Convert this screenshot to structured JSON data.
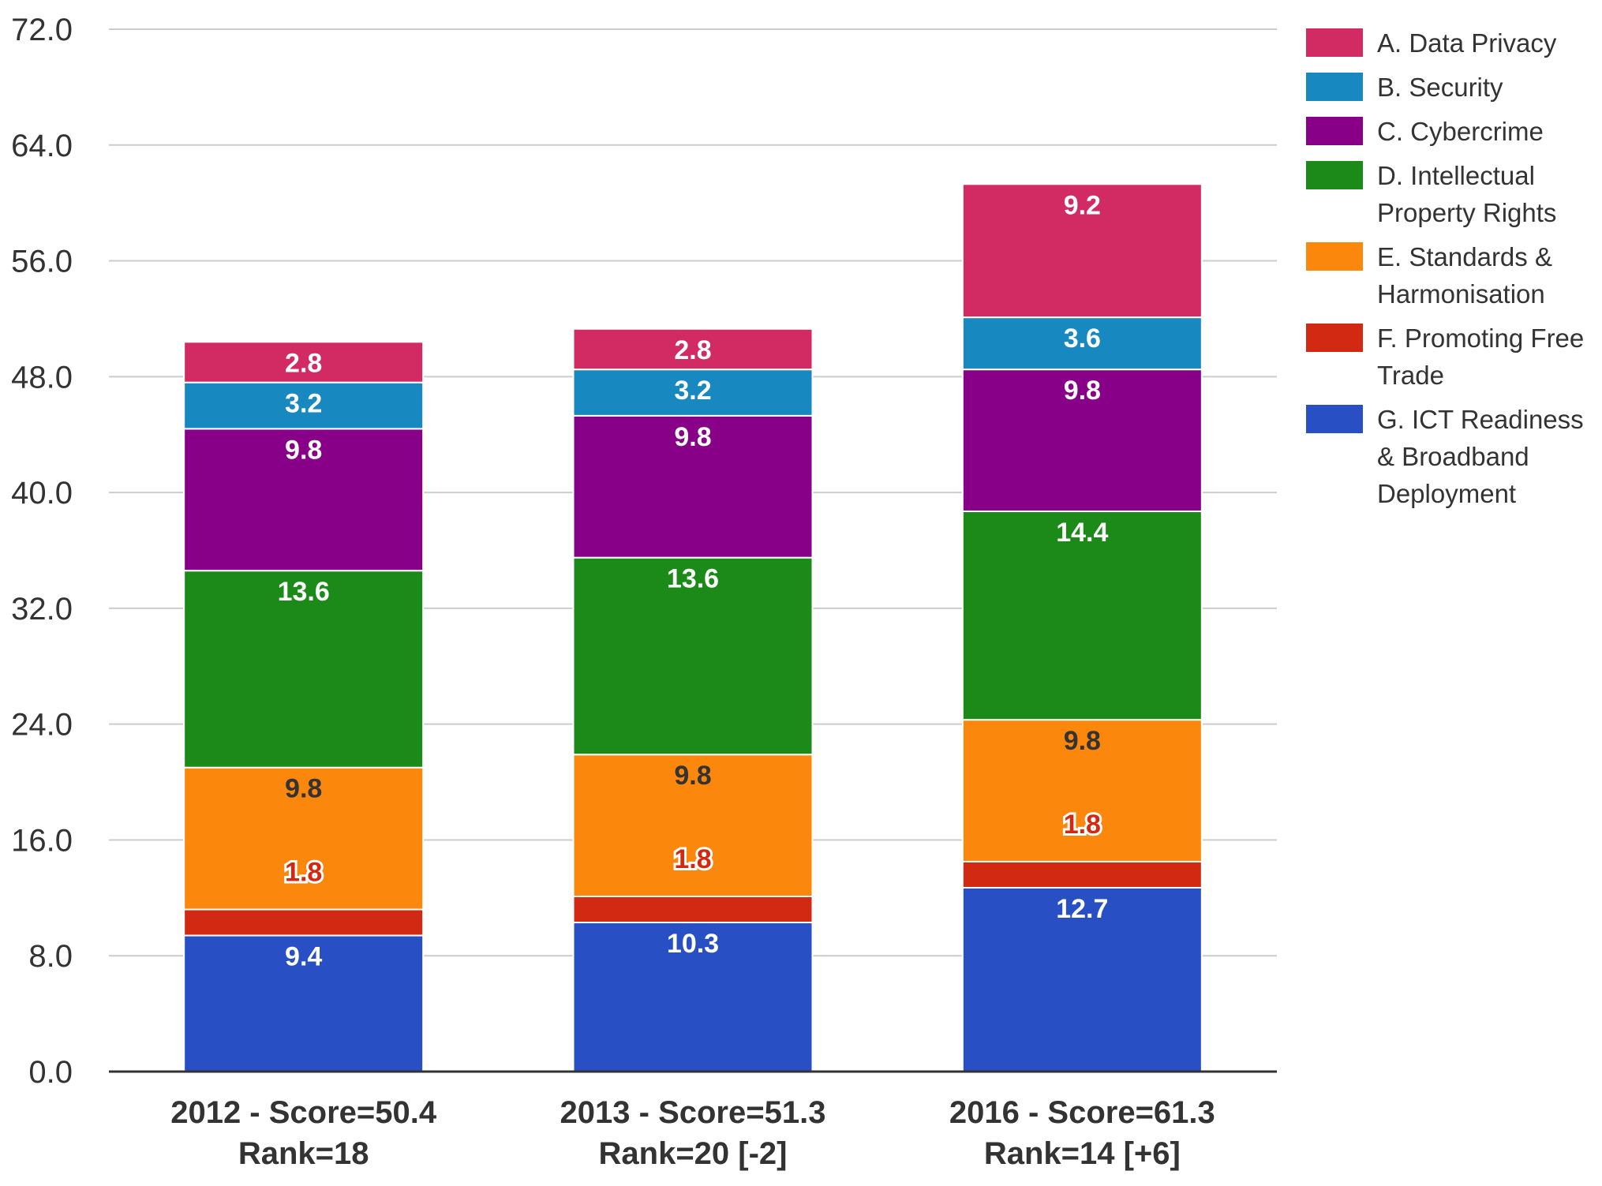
{
  "chart_data": {
    "type": "bar",
    "stacked": true,
    "categories": [
      [
        "2012 - Score=50.4",
        "Rank=18"
      ],
      [
        "2013 - Score=51.3",
        "Rank=20 [-2]"
      ],
      [
        "2016 - Score=61.3",
        "Rank=14 [+6]"
      ]
    ],
    "ylim": [
      0,
      72
    ],
    "yticks": [
      "0.0",
      "8.0",
      "16.0",
      "24.0",
      "32.0",
      "40.0",
      "48.0",
      "56.0",
      "64.0",
      "72.0"
    ],
    "grid": true,
    "legend_position": "right",
    "series": [
      {
        "name": "G. ICT Readiness & Broadband Deployment",
        "color": "#2850c4",
        "label_color": "#ffffff",
        "values": [
          9.4,
          10.3,
          12.7
        ]
      },
      {
        "name": "F. Promoting Free Trade",
        "color": "#d22a12",
        "label_color": "#d22a12",
        "values": [
          1.8,
          1.8,
          1.8
        ]
      },
      {
        "name": "E. Standards & Harmonisation",
        "color": "#fb880c",
        "label_color": "#333333",
        "values": [
          9.8,
          9.8,
          9.8
        ]
      },
      {
        "name": "D. Intellectual Property Rights",
        "color": "#1c8a19",
        "label_color": "#ffffff",
        "values": [
          13.6,
          13.6,
          14.4
        ]
      },
      {
        "name": "C. Cybercrime",
        "color": "#870087",
        "label_color": "#ffffff",
        "values": [
          9.8,
          9.8,
          9.8
        ]
      },
      {
        "name": "B. Security",
        "color": "#1888c0",
        "label_color": "#ffffff",
        "values": [
          3.2,
          3.2,
          3.6
        ]
      },
      {
        "name": "A. Data Privacy",
        "color": "#d22b63",
        "label_color": "#ffffff",
        "values": [
          2.8,
          2.8,
          9.2
        ]
      }
    ],
    "legend": [
      {
        "lines": [
          "A. Data Privacy"
        ],
        "color": "#d22b63"
      },
      {
        "lines": [
          "B. Security"
        ],
        "color": "#1888c0"
      },
      {
        "lines": [
          "C. Cybercrime"
        ],
        "color": "#870087"
      },
      {
        "lines": [
          "D. Intellectual",
          "Property Rights"
        ],
        "color": "#1c8a19"
      },
      {
        "lines": [
          "E. Standards &",
          "Harmonisation"
        ],
        "color": "#fb880c"
      },
      {
        "lines": [
          "F. Promoting Free",
          "Trade"
        ],
        "color": "#d22a12"
      },
      {
        "lines": [
          "G. ICT Readiness",
          "& Broadband",
          "Deployment"
        ],
        "color": "#2850c4"
      }
    ]
  }
}
